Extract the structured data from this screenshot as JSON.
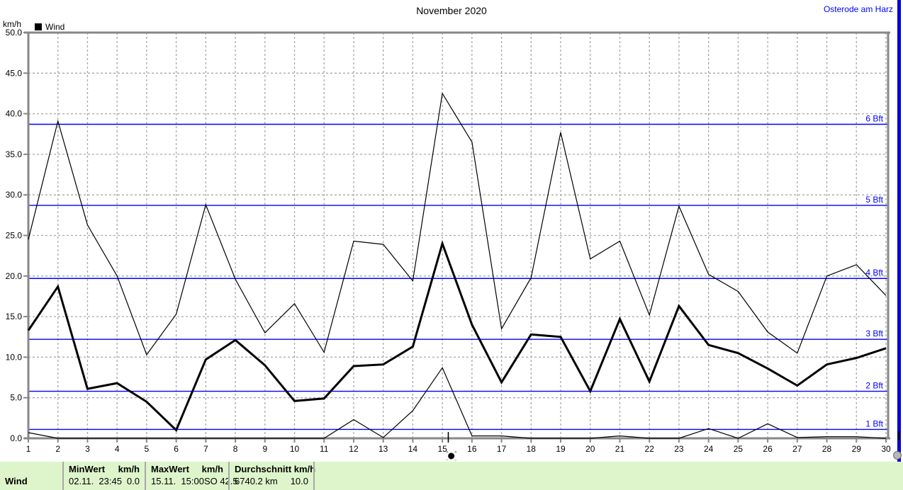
{
  "header": {
    "title": "November 2020",
    "station": "Osterode am Harz"
  },
  "legend": {
    "label": "Wind"
  },
  "chart_data": {
    "type": "line",
    "title": "November 2020",
    "unit_label": "km/h",
    "xlabel": "",
    "ylabel": "km/h",
    "ylim": [
      0,
      50
    ],
    "ytick_step": 5,
    "grid": true,
    "days": [
      1,
      2,
      3,
      4,
      5,
      6,
      7,
      8,
      9,
      10,
      11,
      12,
      13,
      14,
      15,
      16,
      17,
      18,
      19,
      20,
      21,
      22,
      23,
      24,
      25,
      26,
      27,
      28,
      29,
      30
    ],
    "series": [
      {
        "name": "wind-max",
        "style": "thin",
        "values": [
          24.5,
          39.1,
          26.3,
          20.0,
          10.3,
          15.3,
          28.8,
          19.6,
          13.0,
          16.6,
          10.6,
          24.3,
          23.9,
          19.4,
          42.5,
          36.5,
          13.5,
          19.8,
          37.7,
          22.1,
          24.3,
          15.2,
          28.6,
          20.2,
          18.1,
          13.1,
          10.5,
          20.0,
          21.4,
          17.6
        ]
      },
      {
        "name": "wind-average",
        "style": "thick",
        "values": [
          13.3,
          18.7,
          6.1,
          6.8,
          4.5,
          1.0,
          9.7,
          12.1,
          9.0,
          4.6,
          4.9,
          8.9,
          9.1,
          11.3,
          24.0,
          14.0,
          6.9,
          12.8,
          12.5,
          5.8,
          14.7,
          7.0,
          16.3,
          11.5,
          10.5,
          8.6,
          6.5,
          9.1,
          9.9,
          11.1
        ]
      },
      {
        "name": "wind-min",
        "style": "thin",
        "values": [
          0.7,
          0.0,
          0.0,
          0.0,
          0.0,
          0.0,
          0.0,
          0.0,
          0.0,
          0.0,
          0.0,
          2.3,
          0.1,
          3.4,
          8.7,
          0.3,
          0.3,
          0.0,
          0.0,
          0.0,
          0.3,
          0.0,
          0.0,
          1.2,
          0.0,
          1.8,
          0.1,
          0.2,
          0.2,
          0.0
        ]
      }
    ],
    "beaufort_lines": [
      {
        "label": "1 Bft",
        "value": 1.1
      },
      {
        "label": "2 Bft",
        "value": 5.8
      },
      {
        "label": "3 Bft",
        "value": 12.2
      },
      {
        "label": "4 Bft",
        "value": 19.7
      },
      {
        "label": "5 Bft",
        "value": 28.7
      },
      {
        "label": "6 Bft",
        "value": 38.7
      }
    ],
    "marker": {
      "tick_day": 15.2,
      "dot_day": 15.3
    },
    "colors": {
      "line": "#000000",
      "beaufort": "#0000ff",
      "grid": "#a8a8a8",
      "axis": "#878787",
      "station_text": "#0000ff",
      "statusbar_bg": "#def5cb",
      "window_border": "#0000d8"
    }
  },
  "statusbar": {
    "row_label": "Wind",
    "columns": [
      {
        "header": "MinWert",
        "header_unit": "km/h",
        "value": "02.11.  23:45",
        "value_right": "0.0"
      },
      {
        "header": "MaxWert",
        "header_unit": "km/h",
        "value": "15.11.  15:00",
        "value_right": "SO 42.5"
      },
      {
        "header": "Durchschnitt km/h",
        "header_unit": "",
        "value": "6740.2 km",
        "value_right": "10.0"
      }
    ]
  }
}
